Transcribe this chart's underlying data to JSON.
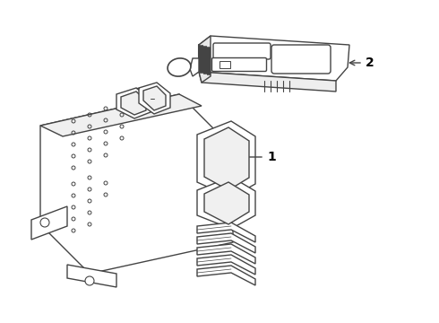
{
  "background_color": "#ffffff",
  "line_color": "#444444",
  "line_width": 1.0,
  "label_1": "1",
  "label_2": "2",
  "label_fontsize": 10,
  "fig_width": 4.9,
  "fig_height": 3.6,
  "dpi": 100
}
